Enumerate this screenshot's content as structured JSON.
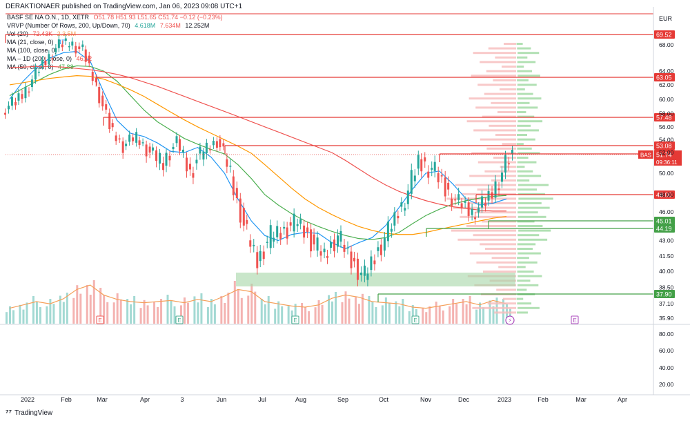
{
  "header": {
    "publisher_line": "DERAKTIONAER published on TradingView.com, Jan 06, 2023 09:08 UTC+1"
  },
  "legend": {
    "symbol": "BASF SE NA O.N., 1D, XETR",
    "ohlc": "O51.78  H51.93  L51.65  C51.74  −0.12 (−0.23%)",
    "vrvp": "VRVP (Number Of Rows, 200, Up/Down, 70)",
    "vrvp_up": "4.618M",
    "vrvp_down": "7.634M",
    "vrvp_total": "12.252M",
    "vol": "Vol (20)",
    "vol_value": "72.43K",
    "vol_ma": "2.3.5M",
    "ma21": "MA (21, close, 0)",
    "ma21_value": "47.",
    "ma100": "MA (100, close, 0)",
    "ma100_value": "",
    "ma200": "MA – 1D (200, close, 0)",
    "ma200_value": "46.12",
    "ma50": "MA (50, close, 0)",
    "ma50_value": "47.88"
  },
  "colors": {
    "up": "#26a69a",
    "down": "#ef5350",
    "line_red": "#e53935",
    "line_green": "#43a047",
    "ma21": "#2196f3",
    "ma50": "#4caf50",
    "ma100": "#ff9800",
    "ma200": "#ef5350",
    "zone": "#a5d6a7",
    "vol_ma": "#f5a05a"
  },
  "price_axis": {
    "currency": "EUR",
    "ticks": [
      "68.00",
      "64.00",
      "62.00",
      "60.00",
      "58.00",
      "56.00",
      "54.00",
      "52.00",
      "50.00",
      "48.00",
      "46.00",
      "43.00",
      "41.50",
      "40.00",
      "38.50",
      "37.10",
      "35.90"
    ]
  },
  "volume_axis": {
    "ticks": [
      "80.00",
      "60.00",
      "40.00",
      "20.00"
    ]
  },
  "price_levels": [
    {
      "value": "69.52",
      "kind": "resistance"
    },
    {
      "value": "63.05",
      "kind": "resistance"
    },
    {
      "value": "57.48",
      "kind": "resistance"
    },
    {
      "value": "53.08",
      "kind": "resistance"
    },
    {
      "value": "51.80",
      "kind": "resistance"
    },
    {
      "value": "48.00",
      "kind": "resistance"
    },
    {
      "value": "45.01",
      "kind": "support"
    },
    {
      "value": "44.19",
      "kind": "support"
    },
    {
      "value": "37.90",
      "kind": "support"
    }
  ],
  "current_price": {
    "symbol": "BAS",
    "value": "51.74",
    "countdown": "09:36:11"
  },
  "time_axis": {
    "labels": [
      "2022",
      "Feb",
      "Mar",
      "Apr",
      "3",
      "Jun",
      "Jul",
      "Aug",
      "Sep",
      "Oct",
      "Nov",
      "Dec",
      "2023",
      "Feb",
      "Mar",
      "Apr"
    ]
  },
  "event_markers": {
    "labels": [
      "E",
      "E",
      "E",
      "E",
      "E"
    ]
  },
  "footer": {
    "brand": "TradingView"
  },
  "chart_data": {
    "type": "candlestick",
    "title": "BASF SE NA O.N., 1D, XETR",
    "xlabel": "",
    "ylabel": "",
    "ylim": [
      35.9,
      70.5
    ],
    "grid": false,
    "series": [
      {
        "name": "MA (21, close, 0)",
        "type": "line",
        "values": [
          60.0,
          62.5,
          64.5,
          66.0,
          66.8,
          67.0,
          65.5,
          61.0,
          57.0,
          55.0,
          54.5,
          53.5,
          52.2,
          52.0,
          52.8,
          51.5,
          50.0,
          47.5,
          45.0,
          43.5,
          43.0,
          43.6,
          43.8,
          43.7,
          42.8,
          42.2,
          42.8,
          43.3,
          44.5,
          46.5,
          48.5,
          50.0,
          50.2,
          49.0,
          47.5,
          46.8,
          47.0,
          47.5
        ]
      },
      {
        "name": "MA (50, close, 0)",
        "type": "line",
        "values": [
          60.5,
          61.5,
          62.5,
          63.5,
          64.3,
          64.8,
          64.7,
          64.0,
          62.5,
          60.5,
          58.5,
          56.8,
          55.5,
          54.2,
          53.3,
          52.5,
          51.8,
          50.8,
          49.5,
          48.0,
          46.8,
          45.8,
          45.0,
          44.4,
          43.9,
          43.5,
          43.2,
          43.1,
          43.3,
          43.8,
          44.7,
          45.6,
          46.3,
          46.9,
          47.3,
          47.6,
          47.8,
          47.9
        ]
      },
      {
        "name": "MA (100, close, 0)",
        "type": "line",
        "values": [
          62.0,
          62.3,
          62.6,
          62.9,
          63.1,
          63.3,
          63.2,
          62.8,
          62.1,
          61.3,
          60.4,
          59.3,
          58.2,
          57.1,
          56.0,
          55.0,
          54.0,
          53.0,
          51.9,
          50.8,
          49.7,
          48.6,
          47.5,
          46.5,
          45.7,
          45.0,
          44.4,
          44.0,
          43.7,
          43.6,
          43.6,
          43.8,
          44.1,
          44.4,
          44.7,
          45.0,
          45.3,
          45.5
        ]
      },
      {
        "name": "MA – 1D (200, close, 0)",
        "type": "line",
        "values": [
          64.5,
          64.6,
          64.7,
          64.7,
          64.6,
          64.4,
          64.2,
          63.9,
          63.5,
          63.0,
          62.4,
          61.8,
          61.1,
          60.4,
          59.7,
          59.0,
          58.3,
          57.6,
          56.8,
          56.0,
          55.2,
          54.4,
          53.6,
          52.8,
          52.0,
          51.2,
          50.4,
          49.6,
          48.9,
          48.3,
          47.8,
          47.3,
          46.9,
          46.6,
          46.4,
          46.2,
          46.1,
          46.1
        ]
      },
      {
        "name": "Close",
        "type": "ohlc",
        "values": [
          59.5,
          62.0,
          65.0,
          67.5,
          68.5,
          67.0,
          62.0,
          56.0,
          53.0,
          54.5,
          52.0,
          51.0,
          53.5,
          50.0,
          52.5,
          53.8,
          50.0,
          44.5,
          41.0,
          43.5,
          44.0,
          45.0,
          43.0,
          41.5,
          43.5,
          41.0,
          39.5,
          42.0,
          44.5,
          47.5,
          51.0,
          50.5,
          48.5,
          47.0,
          46.0,
          47.0,
          49.5,
          51.74
        ]
      }
    ],
    "volume": [
      28,
      34,
      40,
      36,
      45,
      62,
      70,
      52,
      44,
      40,
      38,
      40,
      42,
      38,
      44,
      40,
      50,
      62,
      58,
      40,
      36,
      32,
      30,
      34,
      46,
      52,
      48,
      40,
      38,
      36,
      30,
      28,
      32,
      36,
      40,
      34,
      42,
      36
    ]
  }
}
